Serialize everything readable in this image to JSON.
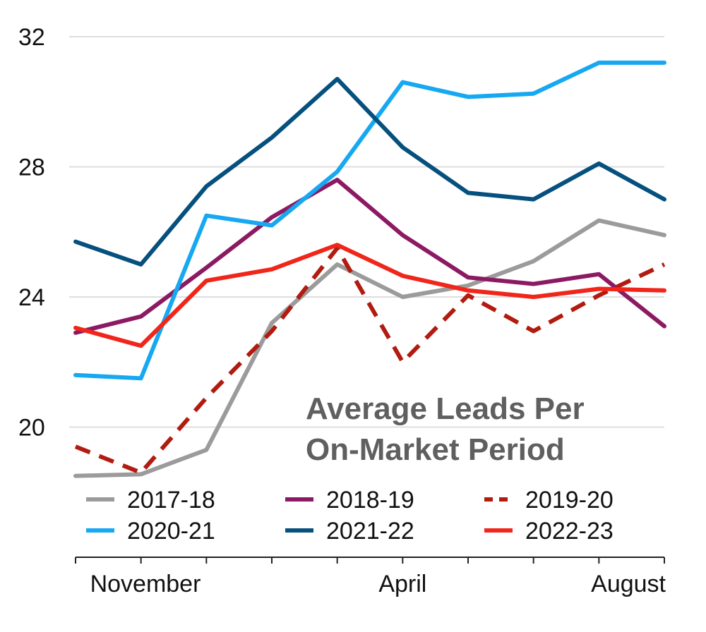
{
  "chart_data": {
    "type": "line",
    "title": [
      "Average Leads Per",
      "On-Market Period"
    ],
    "xlabel": "",
    "ylabel": "",
    "x_tick_labels": [
      "November",
      "April",
      "August"
    ],
    "x_tick_positions": [
      1,
      5,
      8
    ],
    "xlim": [
      0,
      9
    ],
    "ylim": [
      18,
      32
    ],
    "y_ticks": [
      20,
      24,
      28,
      32
    ],
    "grid": "horizontal",
    "legend_placement": "bottom",
    "series": [
      {
        "name": "2017-18",
        "color": "#9b9b9b",
        "dashed": false,
        "values": [
          18.5,
          18.55,
          19.3,
          23.2,
          25.0,
          24.0,
          24.35,
          25.1,
          26.35,
          25.9
        ]
      },
      {
        "name": "2018-19",
        "color": "#8c1a63",
        "dashed": false,
        "values": [
          22.9,
          23.4,
          24.9,
          26.45,
          27.6,
          25.9,
          24.6,
          24.4,
          24.7,
          23.1
        ]
      },
      {
        "name": "2019-20",
        "color": "#b21b0f",
        "dashed": true,
        "values": [
          19.4,
          18.6,
          20.9,
          22.95,
          25.5,
          22.0,
          24.05,
          22.95,
          24.05,
          25.0
        ]
      },
      {
        "name": "2020-21",
        "color": "#16a8f1",
        "dashed": false,
        "values": [
          21.6,
          21.5,
          26.5,
          26.2,
          27.85,
          30.6,
          30.15,
          30.25,
          31.2,
          31.2
        ]
      },
      {
        "name": "2021-22",
        "color": "#06507e",
        "dashed": false,
        "values": [
          25.7,
          25.0,
          27.4,
          28.9,
          30.7,
          28.6,
          27.2,
          27.0,
          28.1,
          27.0
        ]
      },
      {
        "name": "2022-23",
        "color": "#f0261a",
        "dashed": false,
        "values": [
          23.05,
          22.5,
          24.5,
          24.85,
          25.6,
          24.65,
          24.2,
          24.0,
          24.25,
          24.2
        ]
      }
    ]
  }
}
